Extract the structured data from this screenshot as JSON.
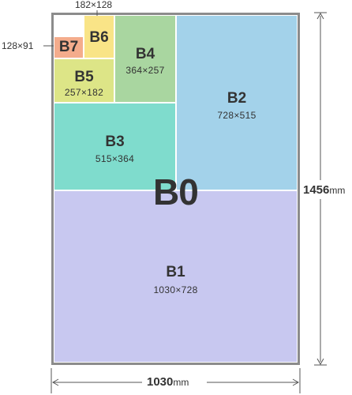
{
  "sheet": {
    "name": "B0",
    "width_label": "1030",
    "height_label": "1456",
    "unit": "mm"
  },
  "sizes": {
    "b1": {
      "name": "B1",
      "dims": "1030×728",
      "color": "#c8c8f0"
    },
    "b2": {
      "name": "B2",
      "dims": "728×515",
      "color": "#a3d2ea"
    },
    "b3": {
      "name": "B3",
      "dims": "515×364",
      "color": "#7fdccd"
    },
    "b4": {
      "name": "B4",
      "dims": "364×257",
      "color": "#a9d6a0"
    },
    "b5": {
      "name": "B5",
      "dims": "257×182",
      "color": "#dde587"
    },
    "b6": {
      "name": "B6",
      "dims": "182×128",
      "color": "#f9e487"
    },
    "b7": {
      "name": "B7",
      "dims": "128×91",
      "color": "#f4ac8c"
    }
  }
}
